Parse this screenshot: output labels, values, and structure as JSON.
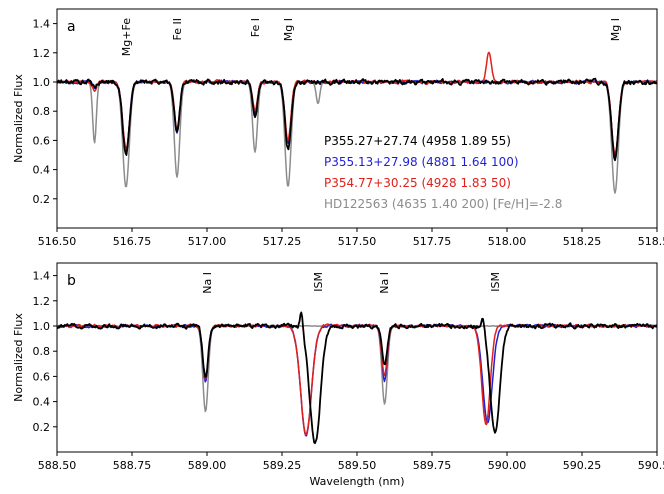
{
  "chart_data": [
    {
      "type": "line",
      "panel_label": "a",
      "ylabel": "Normalized Flux",
      "xlabel": "",
      "xlim": [
        516.5,
        518.5
      ],
      "ylim": [
        0.0,
        1.5
      ],
      "xticks": [
        "516.50",
        "516.75",
        "517.00",
        "517.25",
        "517.50",
        "517.75",
        "518.00",
        "518.25",
        "518.50"
      ],
      "yticks": [
        "0.2",
        "0.4",
        "0.6",
        "0.8",
        "1.0",
        "1.2",
        "1.4"
      ],
      "line_annotations": [
        {
          "text": "Mg+Fe",
          "x": 516.73
        },
        {
          "text": "Fe II",
          "x": 516.9
        },
        {
          "text": "Fe I",
          "x": 517.16
        },
        {
          "text": "Mg I",
          "x": 517.27
        },
        {
          "text": "Mg I",
          "x": 518.36
        }
      ],
      "legend": [
        {
          "text": "P355.27+27.74 (4958 1.89 55)",
          "color": "#000000"
        },
        {
          "text": "P355.13+27.98 (4881 1.64 100)",
          "color": "#1f1fd6"
        },
        {
          "text": "P354.77+30.25 (4928 1.83 50)",
          "color": "#e0201a"
        },
        {
          "text": "HD122563 (4635 1.40 200) [Fe/H]=-2.8",
          "color": "#8c8c8c"
        }
      ],
      "legend_position": "center-right",
      "series": [
        {
          "color": "#8c8c8c",
          "lines": [
            [
              516.625,
              0.42,
              0.006
            ],
            [
              516.73,
              0.72,
              0.011
            ],
            [
              516.9,
              0.65,
              0.009
            ],
            [
              517.16,
              0.48,
              0.008
            ],
            [
              517.27,
              0.72,
              0.01
            ],
            [
              517.37,
              0.15,
              0.006
            ],
            [
              518.36,
              0.76,
              0.011
            ]
          ],
          "noise": 0.004
        },
        {
          "color": "#1f1fd6",
          "lines": [
            [
              516.625,
              0.05,
              0.006
            ],
            [
              516.73,
              0.48,
              0.011
            ],
            [
              516.9,
              0.34,
              0.009
            ],
            [
              517.16,
              0.21,
              0.008
            ],
            [
              517.27,
              0.42,
              0.01
            ],
            [
              518.36,
              0.52,
              0.011
            ]
          ],
          "noise": 0.018
        },
        {
          "color": "#e0201a",
          "lines": [
            [
              516.625,
              0.05,
              0.006
            ],
            [
              516.73,
              0.46,
              0.011
            ],
            [
              516.9,
              0.32,
              0.009
            ],
            [
              517.16,
              0.2,
              0.008
            ],
            [
              517.27,
              0.4,
              0.01
            ],
            [
              518.36,
              0.5,
              0.011
            ]
          ],
          "bumps": [
            [
              517.94,
              0.2,
              0.008
            ]
          ],
          "noise": 0.02
        },
        {
          "color": "#000000",
          "lines": [
            [
              516.625,
              0.04,
              0.006
            ],
            [
              516.73,
              0.5,
              0.011
            ],
            [
              516.9,
              0.33,
              0.009
            ],
            [
              517.16,
              0.24,
              0.008
            ],
            [
              517.27,
              0.46,
              0.01
            ],
            [
              518.36,
              0.53,
              0.011
            ]
          ],
          "noise": 0.03
        }
      ]
    },
    {
      "type": "line",
      "panel_label": "b",
      "ylabel": "Normalized Flux",
      "xlabel": "Wavelength (nm)",
      "xlim": [
        588.5,
        590.5
      ],
      "ylim": [
        0.0,
        1.5
      ],
      "xticks": [
        "588.50",
        "588.75",
        "589.00",
        "589.25",
        "589.50",
        "589.75",
        "590.00",
        "590.25",
        "590.50"
      ],
      "yticks": [
        "0.2",
        "0.4",
        "0.6",
        "0.8",
        "1.0",
        "1.2",
        "1.4"
      ],
      "line_annotations": [
        {
          "text": "Na I",
          "x": 589.0
        },
        {
          "text": "ISM",
          "x": 589.37
        },
        {
          "text": "Na I",
          "x": 589.59
        },
        {
          "text": "ISM",
          "x": 589.96
        }
      ],
      "legend": [],
      "series": [
        {
          "color": "#8c8c8c",
          "lines": [
            [
              588.995,
              0.68,
              0.009
            ],
            [
              589.592,
              0.62,
              0.009
            ]
          ],
          "noise": 0.004
        },
        {
          "color": "#1f1fd6",
          "lines": [
            [
              588.995,
              0.44,
              0.009
            ],
            [
              589.33,
              0.87,
              0.018
            ],
            [
              589.592,
              0.43,
              0.009
            ],
            [
              589.935,
              0.76,
              0.016
            ]
          ],
          "noise": 0.018
        },
        {
          "color": "#e0201a",
          "lines": [
            [
              588.995,
              0.42,
              0.009
            ],
            [
              589.33,
              0.86,
              0.018
            ],
            [
              589.592,
              0.4,
              0.009
            ],
            [
              589.93,
              0.78,
              0.014
            ]
          ],
          "noise": 0.02
        },
        {
          "color": "#000000",
          "lines": [
            [
              588.995,
              0.4,
              0.009
            ],
            [
              589.36,
              0.93,
              0.018
            ],
            [
              589.592,
              0.3,
              0.009
            ],
            [
              589.96,
              0.86,
              0.016
            ]
          ],
          "bumps": [
            [
              589.315,
              0.14,
              0.005
            ],
            [
              589.92,
              0.1,
              0.005
            ]
          ],
          "noise": 0.03
        }
      ]
    }
  ]
}
